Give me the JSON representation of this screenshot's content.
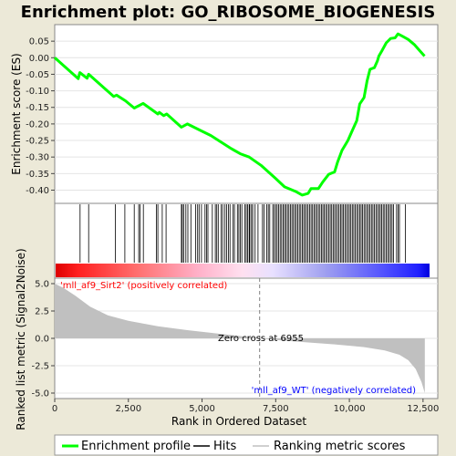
{
  "chart_data": [
    {
      "type": "line",
      "title": "Enrichment plot: GO_RIBOSOME_BIOGENESIS",
      "ylabel": "Enrichment score (ES)",
      "xlim": [
        0,
        13000
      ],
      "ylim": [
        -0.44,
        0.1
      ],
      "yticks": [
        0.05,
        0.0,
        -0.05,
        -0.1,
        -0.15,
        -0.2,
        -0.25,
        -0.3,
        -0.35,
        -0.4
      ],
      "ytick_labels": [
        "0.05",
        "0.00",
        "-0.05",
        "-0.10",
        "-0.15",
        "-0.20",
        "-0.25",
        "-0.30",
        "-0.35",
        "-0.40"
      ],
      "series_color": "#00ff00",
      "points": [
        [
          0,
          0.0
        ],
        [
          800,
          -0.063
        ],
        [
          850,
          -0.045
        ],
        [
          1100,
          -0.062
        ],
        [
          1150,
          -0.05
        ],
        [
          2000,
          -0.117
        ],
        [
          2100,
          -0.113
        ],
        [
          2400,
          -0.13
        ],
        [
          2700,
          -0.152
        ],
        [
          3000,
          -0.138
        ],
        [
          3500,
          -0.17
        ],
        [
          3550,
          -0.165
        ],
        [
          3700,
          -0.175
        ],
        [
          3800,
          -0.17
        ],
        [
          4300,
          -0.21
        ],
        [
          4500,
          -0.2
        ],
        [
          5000,
          -0.222
        ],
        [
          5300,
          -0.235
        ],
        [
          6000,
          -0.275
        ],
        [
          6300,
          -0.29
        ],
        [
          6600,
          -0.3
        ],
        [
          7000,
          -0.325
        ],
        [
          7500,
          -0.365
        ],
        [
          7800,
          -0.39
        ],
        [
          8200,
          -0.405
        ],
        [
          8400,
          -0.415
        ],
        [
          8600,
          -0.41
        ],
        [
          8700,
          -0.395
        ],
        [
          8950,
          -0.395
        ],
        [
          9100,
          -0.375
        ],
        [
          9300,
          -0.352
        ],
        [
          9500,
          -0.345
        ],
        [
          9600,
          -0.315
        ],
        [
          9750,
          -0.28
        ],
        [
          9950,
          -0.25
        ],
        [
          10100,
          -0.22
        ],
        [
          10250,
          -0.19
        ],
        [
          10350,
          -0.14
        ],
        [
          10500,
          -0.12
        ],
        [
          10600,
          -0.07
        ],
        [
          10700,
          -0.035
        ],
        [
          10850,
          -0.03
        ],
        [
          10950,
          -0.01
        ],
        [
          11000,
          0.005
        ],
        [
          11100,
          0.02
        ],
        [
          11250,
          0.045
        ],
        [
          11400,
          0.058
        ],
        [
          11550,
          0.06
        ],
        [
          11650,
          0.072
        ],
        [
          11800,
          0.065
        ],
        [
          12000,
          0.055
        ],
        [
          12200,
          0.04
        ],
        [
          12400,
          0.02
        ],
        [
          12550,
          0.005
        ]
      ]
    },
    {
      "type": "bar",
      "name": "hits",
      "hit_color": "#000000",
      "hit_positions": [
        860,
        1150,
        2060,
        2380,
        2700,
        2850,
        2900,
        3010,
        3450,
        3500,
        3650,
        3780,
        4300,
        4330,
        4380,
        4450,
        4520,
        4620,
        4780,
        4850,
        4900,
        4980,
        5100,
        5150,
        5200,
        5350,
        5450,
        5500,
        5550,
        5650,
        5700,
        5780,
        5830,
        5900,
        5950,
        6050,
        6100,
        6200,
        6250,
        6300,
        6350,
        6450,
        6500,
        6550,
        6600,
        6620,
        6680,
        6720,
        6800,
        6900,
        7050,
        7100,
        7200,
        7250,
        7300,
        7400,
        7450,
        7500,
        7550,
        7600,
        7650,
        7700,
        7750,
        7800,
        7850,
        7900,
        7950,
        8000,
        8050,
        8100,
        8150,
        8200,
        8250,
        8300,
        8350,
        8400,
        8450,
        8500,
        8550,
        8600,
        8650,
        8700,
        8750,
        8800,
        8850,
        8900,
        8950,
        9000,
        9050,
        9100,
        9150,
        9200,
        9250,
        9300,
        9350,
        9400,
        9450,
        9500,
        9550,
        9600,
        9650,
        9700,
        9750,
        9800,
        9850,
        9900,
        9950,
        10000,
        10050,
        10100,
        10150,
        10200,
        10250,
        10300,
        10350,
        10400,
        10450,
        10500,
        10550,
        10600,
        10650,
        10700,
        10750,
        10800,
        10850,
        10900,
        10950,
        11000,
        11050,
        11100,
        11150,
        11200,
        11250,
        11300,
        11350,
        11400,
        11450,
        11500,
        11600,
        11650,
        11700,
        11900
      ]
    },
    {
      "type": "area",
      "ylabel": "Ranked list metric (Signal2Noise)",
      "xlabel": "Rank in Ordered Dataset",
      "xlim": [
        0,
        13000
      ],
      "ylim": [
        -5.5,
        5.5
      ],
      "yticks": [
        5.0,
        2.5,
        0.0,
        -2.5,
        -5.0
      ],
      "ytick_labels": [
        "5.0",
        "2.5",
        "0.0",
        "-2.5",
        "-5.0"
      ],
      "xticks": [
        0,
        2500,
        5000,
        7500,
        10000,
        12500
      ],
      "xtick_labels": [
        "0",
        "2,500",
        "5,000",
        "7,500",
        "10,000",
        "12,500"
      ],
      "fill_color": "#c0c0c0",
      "profile": [
        [
          0,
          5.0
        ],
        [
          300,
          4.6
        ],
        [
          700,
          3.9
        ],
        [
          1200,
          2.9
        ],
        [
          1800,
          2.1
        ],
        [
          2500,
          1.6
        ],
        [
          3500,
          1.1
        ],
        [
          4500,
          0.75
        ],
        [
          5500,
          0.45
        ],
        [
          6500,
          0.15
        ],
        [
          6955,
          0.0
        ],
        [
          7500,
          -0.15
        ],
        [
          8500,
          -0.35
        ],
        [
          9500,
          -0.55
        ],
        [
          10500,
          -0.8
        ],
        [
          11200,
          -1.1
        ],
        [
          11700,
          -1.5
        ],
        [
          12000,
          -2.0
        ],
        [
          12250,
          -2.8
        ],
        [
          12450,
          -4.0
        ],
        [
          12560,
          -5.0
        ]
      ],
      "zero_cross_label": "Zero cross at 6955",
      "zero_cross_x": 6955,
      "positive_label": "'mll_af9_Sirt2' (positively correlated)",
      "positive_color": "#ff0000",
      "negative_label": "'mll_af9_WT' (negatively correlated)",
      "negative_color": "#0000ff"
    }
  ],
  "legend": {
    "placement": "bottom",
    "items": [
      {
        "label": "Enrichment profile",
        "color": "#00ff00"
      },
      {
        "label": "Hits",
        "color": "#000000"
      },
      {
        "label": "Ranking metric scores",
        "color": "#c0c0c0"
      }
    ]
  }
}
